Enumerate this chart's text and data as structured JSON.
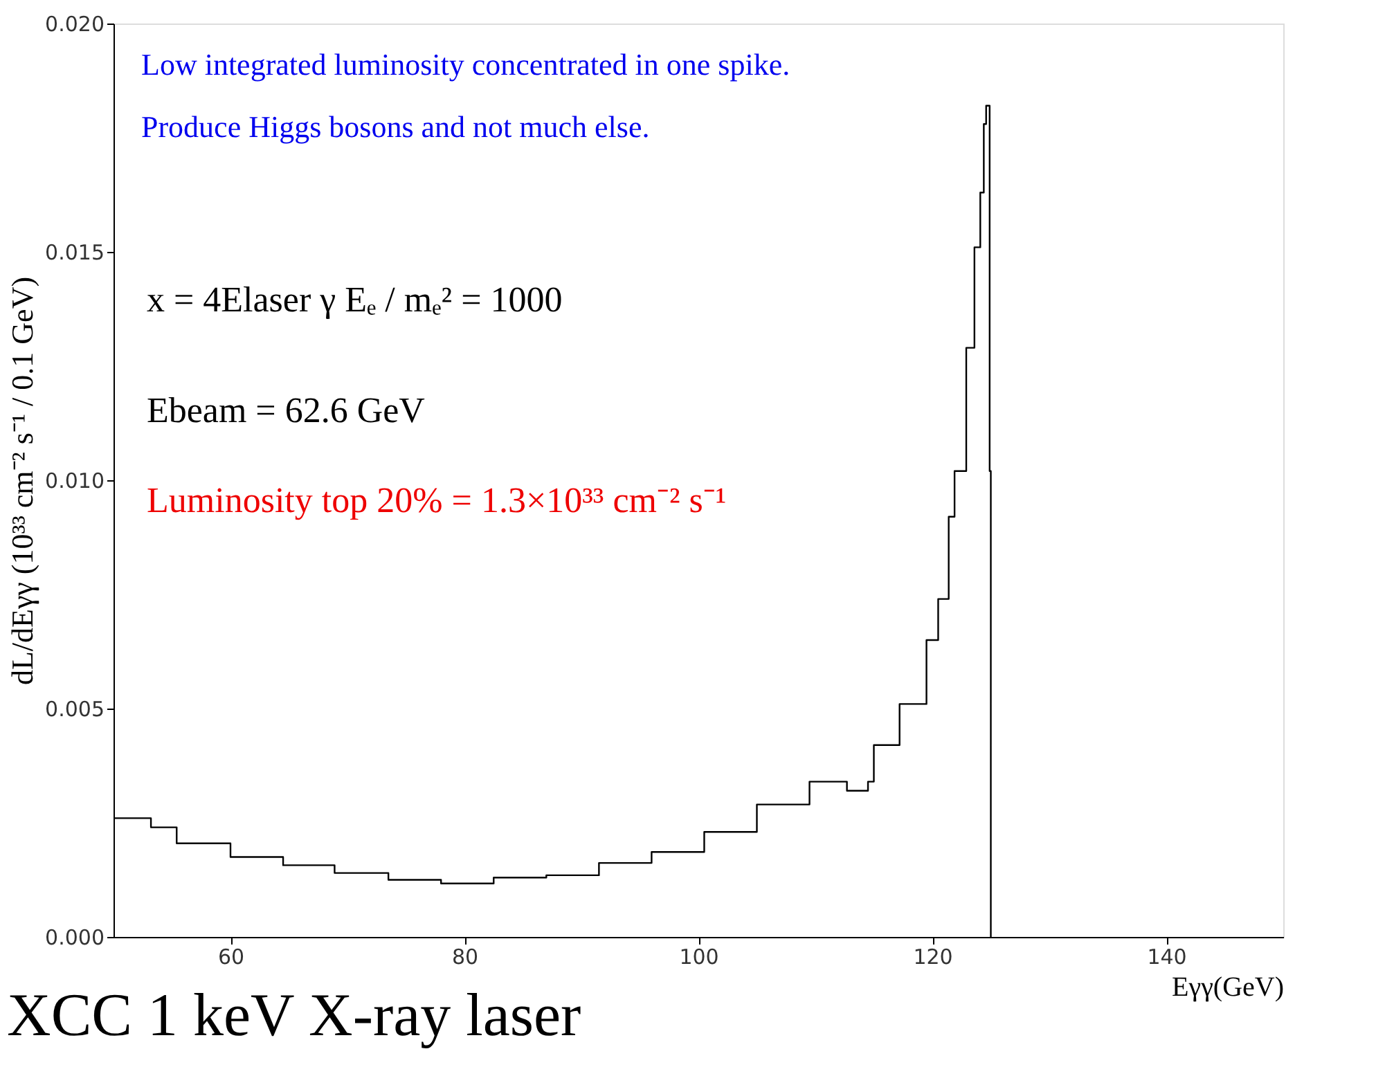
{
  "chart_data": {
    "type": "step",
    "title": "XCC 1 keV X-ray laser",
    "xlabel": "Eγγ(GeV)",
    "ylabel": "dL/dEγγ  (10³³ cm⁻² s⁻¹ / 0.1 GeV)",
    "x": [
      50,
      53.2,
      55.4,
      60,
      64.5,
      68.9,
      73.5,
      78,
      82.5,
      87,
      91.5,
      96,
      100.5,
      105,
      109.5,
      112.7,
      114.5,
      115,
      117.2,
      119.5,
      120.5,
      121.4,
      121.9,
      122.9,
      123.6,
      124.1,
      124.4,
      124.6,
      124.9,
      125
    ],
    "series": [
      {
        "color": "#000000",
        "values": [
          0.0026,
          0.0024,
          0.00205,
          0.00175,
          0.00157,
          0.0014,
          0.00125,
          0.00117,
          0.0013,
          0.00135,
          0.00162,
          0.00186,
          0.0023,
          0.0029,
          0.0034,
          0.0032,
          0.0034,
          0.0042,
          0.0051,
          0.0065,
          0.0074,
          0.0092,
          0.0102,
          0.0129,
          0.0151,
          0.0163,
          0.0178,
          0.0182,
          0.0102,
          0
        ]
      }
    ],
    "xlim": [
      50,
      150
    ],
    "xticks": [
      60,
      80,
      100,
      120,
      140
    ],
    "ylim": [
      0,
      0.02
    ],
    "yticks": [
      {
        "value": 0,
        "label": "0.000"
      },
      0.005,
      {
        "value": 0.01,
        "label": "0.010"
      },
      0.015,
      {
        "value": 0.02,
        "label": "0.020"
      }
    ],
    "grid": false,
    "line_style": "solid",
    "annotations": [
      "Low integrated luminosity concentrated in one spike.",
      "Produce Higgs bosons and not much else.",
      "x = 4Elaser γ Eₑ / mₑ² = 1000",
      "Ebeam = 62.6 GeV",
      "Luminosity top 20% = 1.3×10³³ cm⁻² s⁻¹"
    ]
  }
}
